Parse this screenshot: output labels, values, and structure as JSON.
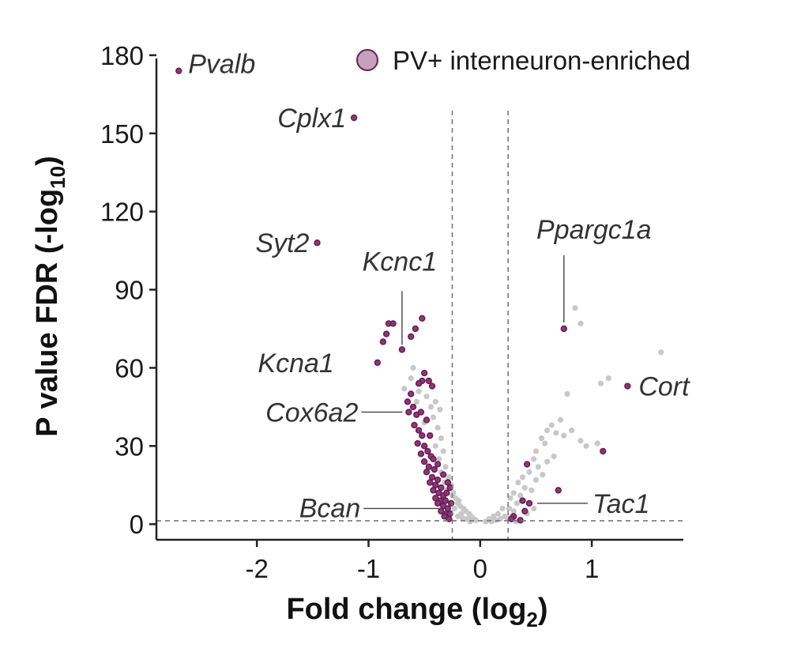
{
  "chart_data": {
    "type": "scatter",
    "xlabel": "Fold change (log",
    "xlabel_sub": "2",
    "xlabel_end": ")",
    "ylabel": "P value FDR (-log",
    "ylabel_sub": "10",
    "ylabel_end": ")",
    "xlim": [
      -2.9,
      1.82
    ],
    "ylim": [
      -6,
      183
    ],
    "xticks": [
      -2,
      -1,
      0,
      1
    ],
    "xtick_labels": [
      "-2",
      "-1",
      "0",
      "1"
    ],
    "yticks": [
      0,
      30,
      60,
      90,
      120,
      150,
      180
    ],
    "ytick_labels": [
      "0",
      "30",
      "60",
      "90",
      "120",
      "150",
      "180"
    ],
    "thresholds": {
      "x": [
        -0.25,
        0.25
      ],
      "y": 1.3
    },
    "grid": false,
    "legend": {
      "position": "top-right",
      "entries": [
        {
          "name": "PV+ interneuron-enriched",
          "color": "#6b1e57",
          "fill": "#c2a3bb"
        }
      ]
    },
    "colors": {
      "enriched": "#6b1e57",
      "enriched_fill": "#8c3a77",
      "background": "#c8c8c8"
    },
    "series": [
      {
        "name": "PV+ interneuron-enriched",
        "points": [
          [
            -2.7,
            174
          ],
          [
            -1.13,
            156
          ],
          [
            -1.46,
            108
          ],
          [
            -0.7,
            67
          ],
          [
            -0.92,
            62
          ],
          [
            -0.52,
            79
          ],
          [
            -0.82,
            77
          ],
          [
            -0.78,
            77
          ],
          [
            -0.84,
            73
          ],
          [
            -0.87,
            70
          ],
          [
            -0.62,
            72
          ],
          [
            -0.58,
            75
          ],
          [
            0.75,
            75
          ],
          [
            1.32,
            53
          ],
          [
            -0.5,
            58
          ],
          [
            -0.52,
            55
          ],
          [
            -0.46,
            55
          ],
          [
            -0.55,
            54
          ],
          [
            -0.43,
            53
          ],
          [
            -0.62,
            50
          ],
          [
            -0.65,
            47
          ],
          [
            -0.6,
            45
          ],
          [
            -0.64,
            43
          ],
          [
            -0.57,
            42
          ],
          [
            -0.53,
            43
          ],
          [
            -0.48,
            40
          ],
          [
            -0.59,
            38
          ],
          [
            -0.55,
            36
          ],
          [
            -0.52,
            34
          ],
          [
            -0.45,
            34
          ],
          [
            -0.56,
            31
          ],
          [
            -0.5,
            30
          ],
          [
            -0.47,
            28
          ],
          [
            -0.53,
            27
          ],
          [
            -0.44,
            26
          ],
          [
            -0.5,
            24
          ],
          [
            -0.46,
            22
          ],
          [
            -0.41,
            21
          ],
          [
            -0.48,
            20
          ],
          [
            -0.43,
            18
          ],
          [
            -0.38,
            17
          ],
          [
            -0.45,
            16
          ],
          [
            -0.4,
            15
          ],
          [
            -0.35,
            14
          ],
          [
            -0.42,
            13
          ],
          [
            -0.37,
            12
          ],
          [
            -0.33,
            11
          ],
          [
            -0.4,
            10
          ],
          [
            -0.36,
            9
          ],
          [
            -0.31,
            9
          ],
          [
            -0.38,
            8
          ],
          [
            -0.33,
            7
          ],
          [
            -0.29,
            6
          ],
          [
            -0.35,
            5
          ],
          [
            -0.3,
            4
          ],
          [
            -0.27,
            4
          ],
          [
            -0.32,
            3
          ],
          [
            -0.28,
            2
          ],
          [
            -0.26,
            8
          ],
          [
            -0.3,
            12
          ],
          [
            -0.27,
            14
          ],
          [
            -0.33,
            19
          ],
          [
            -0.38,
            23
          ],
          [
            -0.42,
            25
          ],
          [
            -0.29,
            16
          ],
          [
            1.1,
            28
          ],
          [
            0.7,
            13
          ],
          [
            0.42,
            23
          ],
          [
            0.38,
            9
          ],
          [
            0.44,
            8
          ],
          [
            0.3,
            3
          ],
          [
            0.28,
            2
          ],
          [
            0.36,
            1.5
          ],
          [
            0.4,
            5
          ]
        ]
      },
      {
        "name": "",
        "points": [
          [
            0.85,
            83
          ],
          [
            0.9,
            77
          ],
          [
            1.62,
            66
          ],
          [
            1.08,
            54
          ],
          [
            1.15,
            56
          ],
          [
            0.78,
            50
          ],
          [
            0.72,
            40
          ],
          [
            0.6,
            36
          ],
          [
            0.64,
            38
          ],
          [
            0.68,
            35
          ],
          [
            0.55,
            33
          ],
          [
            0.58,
            31
          ],
          [
            0.75,
            34
          ],
          [
            0.82,
            36
          ],
          [
            0.9,
            32
          ],
          [
            0.95,
            30
          ],
          [
            1.05,
            31
          ],
          [
            0.5,
            28
          ],
          [
            0.48,
            25
          ],
          [
            0.6,
            24
          ],
          [
            0.66,
            26
          ],
          [
            0.52,
            22
          ],
          [
            0.44,
            20
          ],
          [
            0.38,
            18
          ],
          [
            0.5,
            17
          ],
          [
            0.56,
            19
          ],
          [
            0.34,
            16
          ],
          [
            0.4,
            14
          ],
          [
            0.46,
            13
          ],
          [
            0.3,
            12
          ],
          [
            0.36,
            11
          ],
          [
            0.27,
            10
          ],
          [
            0.33,
            8
          ],
          [
            0.26,
            6
          ],
          [
            0.3,
            5
          ],
          [
            0.28,
            3
          ],
          [
            0.42,
            4
          ],
          [
            0.48,
            6
          ],
          [
            0.25,
            2
          ],
          [
            0.32,
            1
          ],
          [
            0.22,
            3
          ],
          [
            -0.48,
            49
          ],
          [
            -0.55,
            51
          ],
          [
            -0.62,
            56
          ],
          [
            -0.4,
            47
          ],
          [
            -0.36,
            44
          ],
          [
            -0.42,
            41
          ],
          [
            -0.5,
            39
          ],
          [
            -0.38,
            37
          ],
          [
            -0.35,
            33
          ],
          [
            -0.4,
            30
          ],
          [
            -0.33,
            28
          ],
          [
            -0.37,
            25
          ],
          [
            -0.31,
            22
          ],
          [
            -0.35,
            20
          ],
          [
            -0.28,
            18
          ],
          [
            -0.32,
            16
          ],
          [
            -0.26,
            15
          ],
          [
            -0.3,
            13
          ],
          [
            -0.24,
            12
          ],
          [
            -0.22,
            10
          ],
          [
            -0.2,
            8
          ],
          [
            -0.18,
            7
          ],
          [
            -0.15,
            6
          ],
          [
            -0.13,
            5
          ],
          [
            -0.1,
            4
          ],
          [
            -0.08,
            3
          ],
          [
            -0.06,
            2
          ],
          [
            -0.04,
            1.5
          ],
          [
            -0.2,
            3
          ],
          [
            -0.17,
            4
          ],
          [
            -0.12,
            2
          ],
          [
            -0.23,
            6
          ],
          [
            -0.19,
            9
          ],
          [
            -0.25,
            11
          ],
          [
            -0.16,
            2.5
          ],
          [
            -0.09,
            1
          ],
          [
            0.05,
            1
          ],
          [
            0.08,
            2
          ],
          [
            0.12,
            3
          ],
          [
            0.16,
            4
          ],
          [
            0.2,
            6
          ],
          [
            0.18,
            2
          ],
          [
            0.14,
            1.5
          ],
          [
            0.1,
            1
          ],
          [
            -0.6,
            60
          ],
          [
            -0.68,
            52
          ],
          [
            -0.44,
            45
          ],
          [
            -0.57,
            47
          ]
        ]
      }
    ],
    "annotations": [
      {
        "text": "Pvalb",
        "point": [
          -2.7,
          174
        ]
      },
      {
        "text": "Cplx1",
        "point": [
          -1.13,
          156
        ]
      },
      {
        "text": "Syt2",
        "point": [
          -1.46,
          108
        ]
      },
      {
        "text": "Kcnc1",
        "point": [
          -0.7,
          67
        ]
      },
      {
        "text": "Kcna1",
        "point": [
          -0.92,
          62
        ]
      },
      {
        "text": "Cox6a2",
        "point": [
          -0.64,
          43
        ]
      },
      {
        "text": "Bcan",
        "point": [
          -0.28,
          6
        ]
      },
      {
        "text": "Ppargc1a",
        "point": [
          0.75,
          75
        ]
      },
      {
        "text": "Cort",
        "point": [
          1.32,
          53
        ]
      },
      {
        "text": "Tac1",
        "point": [
          0.44,
          8
        ]
      }
    ]
  }
}
